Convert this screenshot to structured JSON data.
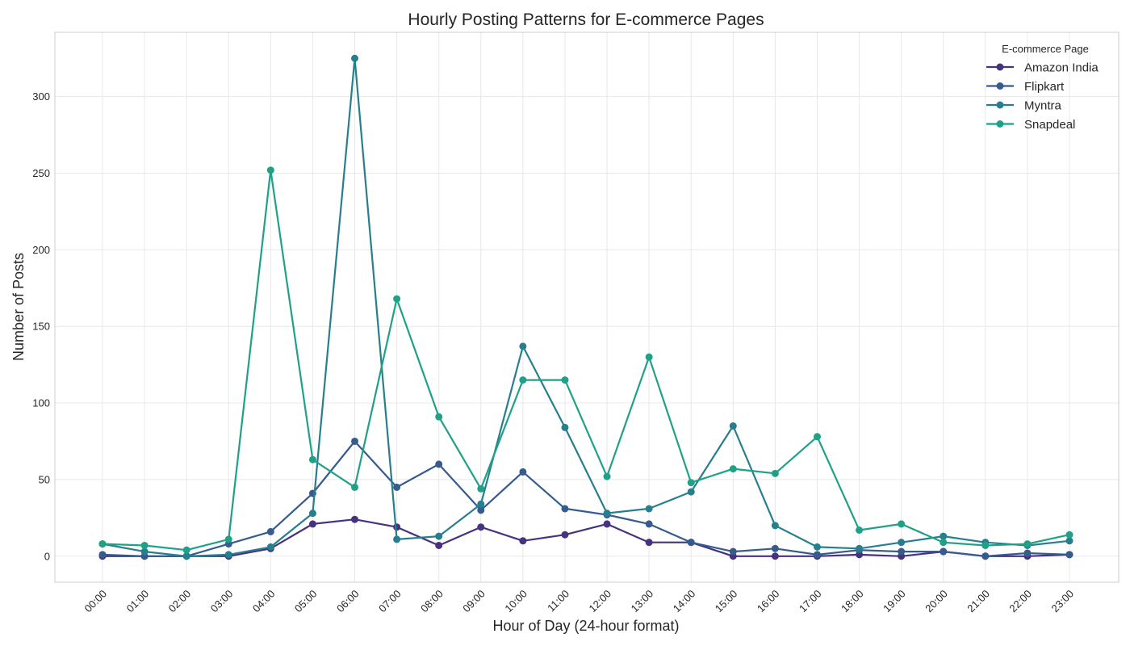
{
  "chart_data": {
    "type": "line",
    "title": "Hourly Posting Patterns for E-commerce Pages",
    "xlabel": "Hour of Day (24-hour format)",
    "ylabel": "Number of Posts",
    "categories": [
      "00:00",
      "01:00",
      "02:00",
      "03:00",
      "04:00",
      "05:00",
      "06:00",
      "07:00",
      "08:00",
      "09:00",
      "10:00",
      "11:00",
      "12:00",
      "13:00",
      "14:00",
      "15:00",
      "16:00",
      "17:00",
      "18:00",
      "19:00",
      "20:00",
      "21:00",
      "22:00",
      "23:00"
    ],
    "yticks": [
      0,
      50,
      100,
      150,
      200,
      250,
      300
    ],
    "ylim": [
      -17,
      342
    ],
    "grid": true,
    "legend": {
      "title": "E-commerce Page",
      "placement": "top-right"
    },
    "series": [
      {
        "name": "Amazon India",
        "color": "#46327e",
        "values": [
          0,
          0,
          0,
          0,
          5,
          21,
          24,
          19,
          7,
          19,
          10,
          14,
          21,
          9,
          9,
          0,
          0,
          0,
          1,
          0,
          3,
          0,
          0,
          1
        ]
      },
      {
        "name": "Flipkart",
        "color": "#365c8d",
        "values": [
          1,
          0,
          0,
          8,
          16,
          41,
          75,
          45,
          60,
          30,
          55,
          31,
          27,
          21,
          9,
          3,
          5,
          1,
          4,
          3,
          3,
          0,
          2,
          1
        ]
      },
      {
        "name": "Myntra",
        "color": "#277f8e",
        "values": [
          8,
          3,
          0,
          1,
          6,
          28,
          325,
          11,
          13,
          34,
          137,
          84,
          28,
          31,
          42,
          85,
          20,
          6,
          5,
          9,
          13,
          9,
          7,
          10
        ]
      },
      {
        "name": "Snapdeal",
        "color": "#1fa187",
        "values": [
          8,
          7,
          4,
          11,
          252,
          63,
          45,
          168,
          91,
          44,
          115,
          115,
          52,
          130,
          48,
          57,
          54,
          78,
          17,
          21,
          9,
          7,
          8,
          14
        ]
      }
    ]
  }
}
